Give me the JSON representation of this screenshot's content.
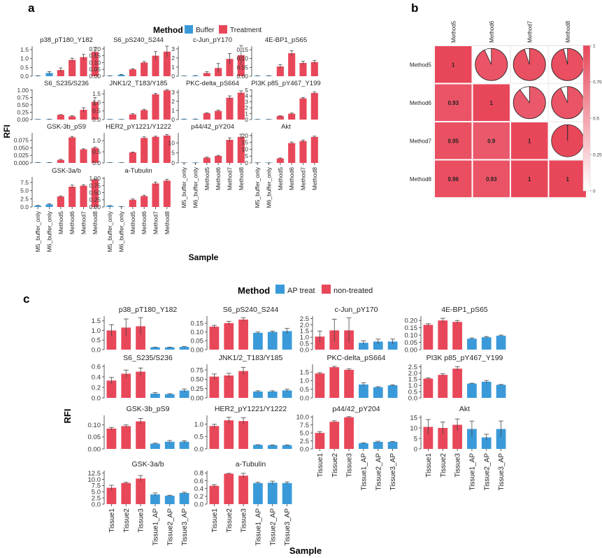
{
  "colors": {
    "red": "#E8475A",
    "blue": "#3A9AD9",
    "axis": "#333333",
    "heat_low": "#FFFFFF",
    "heat_high": "#E8475A"
  },
  "panel_a": {
    "letter": "a",
    "legend": {
      "title": "Method",
      "items": [
        "Buffer",
        "Treatment"
      ]
    },
    "ylabel": "RFI",
    "xlabel": "Sample",
    "samples": [
      "M5_buffer_only",
      "M6_buffer_only",
      "Method5",
      "Method6",
      "Method7",
      "Method8"
    ],
    "sample_colors": [
      "blue",
      "blue",
      "red",
      "red",
      "red",
      "red"
    ],
    "subplots": [
      {
        "title": "p38_pT180_Y182",
        "ticks": [
          "0.0",
          "0.5",
          "1.0",
          "1.5"
        ],
        "ymax": 1.7,
        "values": [
          0.02,
          0.18,
          0.35,
          0.92,
          1.08,
          1.38
        ],
        "errors": [
          0.01,
          0.08,
          0.12,
          0.1,
          0.15,
          0.25
        ]
      },
      {
        "title": "S6_pS240_S244",
        "ticks": [
          "0.00",
          "0.05",
          "0.10",
          "0.15",
          "0.20"
        ],
        "ymax": 0.22,
        "values": [
          0.003,
          0.01,
          0.05,
          0.1,
          0.15,
          0.18
        ],
        "errors": [
          0.001,
          0.003,
          0.005,
          0.008,
          0.03,
          0.04
        ]
      },
      {
        "title": "c-Jun_pY170",
        "ticks": [
          "0",
          "1",
          "2",
          "3"
        ],
        "ymax": 3.3,
        "values": [
          0.02,
          0.05,
          0.35,
          0.9,
          1.9,
          2.3
        ],
        "errors": [
          0.01,
          0.02,
          0.15,
          0.5,
          0.6,
          1.1
        ]
      },
      {
        "title": "4E-BP1_pS65",
        "ticks": [
          "0.00",
          "0.05",
          "0.10",
          "0.15"
        ],
        "ymax": 0.17,
        "values": [
          0.002,
          0.002,
          0.055,
          0.13,
          0.075,
          0.08
        ],
        "errors": [
          0.001,
          0.001,
          0.01,
          0.015,
          0.01,
          0.01
        ]
      },
      {
        "title": "S6_S235/S236",
        "ticks": [
          "0.00",
          "0.25",
          "0.50",
          "0.75",
          "1.00"
        ],
        "ymax": 1.02,
        "values": [
          0.005,
          0.01,
          0.16,
          0.11,
          0.33,
          0.6
        ],
        "errors": [
          0.002,
          0.005,
          0.01,
          0.02,
          0.07,
          0.15
        ]
      },
      {
        "title": "JNK1/2_T183/Y185",
        "ticks": [
          "0.0",
          "0.5",
          "1.0",
          "1.5"
        ],
        "ymax": 1.75,
        "values": [
          0.01,
          0.01,
          0.3,
          0.55,
          1.47,
          1.7
        ],
        "errors": [
          0.003,
          0.003,
          0.04,
          0.05,
          0.06,
          0.05
        ]
      },
      {
        "title": "PKC-delta_pS664",
        "ticks": [
          "0",
          "1",
          "2",
          "3"
        ],
        "ymax": 3.3,
        "values": [
          0.05,
          0.05,
          0.7,
          0.95,
          2.4,
          2.95
        ],
        "errors": [
          0.01,
          0.01,
          0.05,
          0.08,
          0.2,
          0.2
        ]
      },
      {
        "title": "PI3K p85_pY467_Y199",
        "ticks": [
          "0",
          "1",
          "2",
          "3",
          "4",
          "5"
        ],
        "ymax": 5.1,
        "values": [
          0.02,
          0.02,
          0.6,
          1.0,
          3.6,
          4.5
        ],
        "errors": [
          0.01,
          0.01,
          0.05,
          0.1,
          0.15,
          0.2
        ]
      },
      {
        "title": "GSK-3b_pS9",
        "ticks": [
          "0.000",
          "0.025",
          "0.050",
          "0.075"
        ],
        "ymax": 0.1,
        "values": [
          0.001,
          0.001,
          0.01,
          0.085,
          0.045,
          0.05
        ],
        "errors": [
          0.0005,
          0.0005,
          0.002,
          0.003,
          0.002,
          0.003
        ]
      },
      {
        "title": "HER2_pY1221/Y1222",
        "ticks": [
          "0.0",
          "0.5",
          "1.0"
        ],
        "ymax": 1.35,
        "values": [
          0.01,
          0.01,
          0.47,
          1.12,
          1.17,
          1.23
        ],
        "errors": [
          0.003,
          0.003,
          0.02,
          0.05,
          0.03,
          0.05
        ]
      },
      {
        "title": "p44/42_pY204",
        "ticks": [
          "0",
          "5",
          "10"
        ],
        "ymax": 15.0,
        "values": [
          0.02,
          0.02,
          2.6,
          3.5,
          11.5,
          13.0
        ],
        "errors": [
          0.01,
          0.01,
          0.3,
          0.3,
          1.0,
          1.3
        ]
      },
      {
        "title": "Akt",
        "ticks": [
          "0",
          "5",
          "10",
          "15",
          "20"
        ],
        "ymax": 22.0,
        "values": [
          0.05,
          0.05,
          3.3,
          14.5,
          16.0,
          19.0
        ],
        "errors": [
          0.02,
          0.02,
          0.3,
          0.8,
          0.8,
          0.6
        ]
      },
      {
        "title": "GSK-3a/b",
        "ticks": [
          "0.0",
          "2.5",
          "5.0",
          "7.5"
        ],
        "ymax": 9.2,
        "values": [
          0.4,
          0.8,
          3.2,
          6.2,
          6.5,
          8.4
        ],
        "errors": [
          0.1,
          0.15,
          0.2,
          0.5,
          0.3,
          0.2
        ]
      },
      {
        "title": "a-Tubulin",
        "ticks": [
          "0.00",
          "0.25",
          "0.50",
          "0.75",
          "1.00"
        ],
        "ymax": 1.05,
        "values": [
          0.04,
          0.01,
          0.25,
          0.38,
          0.82,
          0.92
        ],
        "errors": [
          0.01,
          0.005,
          0.03,
          0.03,
          0.05,
          0.05
        ]
      }
    ]
  },
  "panel_b": {
    "letter": "b",
    "labels": [
      "Method5",
      "Method6",
      "Method7",
      "Method8"
    ],
    "matrix": [
      [
        1,
        0.93,
        0.95,
        0.96
      ],
      [
        0.93,
        1,
        0.9,
        0.93
      ],
      [
        0.95,
        0.9,
        1,
        1
      ],
      [
        0.96,
        0.93,
        1,
        1
      ]
    ],
    "lower_text": [
      [
        "1",
        "",
        "",
        ""
      ],
      [
        "0.93",
        "1",
        "",
        ""
      ],
      [
        "0.95",
        "0.9",
        "1",
        ""
      ],
      [
        "0.96",
        "0.93",
        "1",
        "1"
      ]
    ],
    "colorbar_ticks": [
      "0",
      "0.25",
      "0.5",
      "0.75",
      "1"
    ]
  },
  "panel_c": {
    "letter": "c",
    "legend": {
      "title": "Method",
      "items": [
        "AP treat",
        "non-treated"
      ]
    },
    "ylabel": "RFI",
    "xlabel": "Sample",
    "samples": [
      "Tissue1",
      "Tissue2",
      "Tissue3",
      "Tissue1_AP",
      "Tissue2_AP",
      "Tissue3_AP"
    ],
    "sample_colors": [
      "red",
      "red",
      "red",
      "blue",
      "blue",
      "blue"
    ],
    "subplots": [
      {
        "title": "p38_pT180_Y182",
        "ticks": [
          "0.0",
          "0.5",
          "1.0",
          "1.5"
        ],
        "ymax": 1.75,
        "values": [
          1.0,
          1.15,
          1.22,
          0.12,
          0.12,
          0.14
        ],
        "errors": [
          0.3,
          0.45,
          0.45,
          0.01,
          0.01,
          0.02
        ]
      },
      {
        "title": "S6_pS240_S244",
        "ticks": [
          "0.00",
          "0.05",
          "0.10",
          "0.15"
        ],
        "ymax": 0.19,
        "values": [
          0.13,
          0.15,
          0.17,
          0.095,
          0.1,
          0.105
        ],
        "errors": [
          0.008,
          0.01,
          0.01,
          0.005,
          0.005,
          0.015
        ]
      },
      {
        "title": "c-Jun_pY170",
        "ticks": [
          "0.0",
          "0.5",
          "1.0",
          "1.5",
          "2.0",
          "2.5"
        ],
        "ymax": 2.7,
        "values": [
          1.05,
          1.55,
          1.55,
          0.55,
          0.65,
          0.65
        ],
        "errors": [
          0.45,
          0.9,
          1.0,
          0.15,
          0.2,
          0.2
        ]
      },
      {
        "title": "4E-BP1_pS65",
        "ticks": [
          "0.00",
          "0.05",
          "0.10",
          "0.15",
          "0.20"
        ],
        "ymax": 0.23,
        "values": [
          0.17,
          0.2,
          0.19,
          0.075,
          0.085,
          0.095
        ],
        "errors": [
          0.008,
          0.015,
          0.01,
          0.005,
          0.005,
          0.005
        ]
      },
      {
        "title": "S6_S235/S236",
        "ticks": [
          "0.0",
          "0.2",
          "0.4",
          "0.6"
        ],
        "ymax": 0.64,
        "values": [
          0.33,
          0.46,
          0.5,
          0.08,
          0.07,
          0.14
        ],
        "errors": [
          0.06,
          0.07,
          0.07,
          0.02,
          0.01,
          0.03
        ]
      },
      {
        "title": "JNK1/2_T183/Y185",
        "ticks": [
          "0.00",
          "0.25",
          "0.50",
          "0.75"
        ],
        "ymax": 0.9,
        "values": [
          0.57,
          0.6,
          0.72,
          0.17,
          0.17,
          0.2
        ],
        "errors": [
          0.07,
          0.06,
          0.1,
          0.02,
          0.02,
          0.03
        ]
      },
      {
        "title": "PKC-delta_pS664",
        "ticks": [
          "0.0",
          "0.5",
          "1.0",
          "1.5"
        ],
        "ymax": 1.95,
        "values": [
          1.42,
          1.78,
          1.63,
          0.78,
          0.62,
          0.73
        ],
        "errors": [
          0.05,
          0.05,
          0.05,
          0.1,
          0.03,
          0.03
        ]
      },
      {
        "title": "PI3K p85_pY467_Y199",
        "ticks": [
          "0.0",
          "0.5",
          "1.0",
          "1.5",
          "2.0",
          "2.5"
        ],
        "ymax": 2.7,
        "values": [
          1.55,
          1.85,
          2.35,
          1.15,
          1.3,
          1.05
        ],
        "errors": [
          0.06,
          0.1,
          0.15,
          0.03,
          0.1,
          0.03
        ]
      },
      {
        "title": "GSK-3b_pS9",
        "ticks": [
          "0.00",
          "0.05",
          "0.10"
        ],
        "ymax": 0.14,
        "values": [
          0.085,
          0.095,
          0.115,
          0.022,
          0.03,
          0.03
        ],
        "errors": [
          0.005,
          0.005,
          0.012,
          0.002,
          0.005,
          0.004
        ]
      },
      {
        "title": "HER2_pY1221/Y1222",
        "ticks": [
          "0.0",
          "0.5",
          "1.0"
        ],
        "ymax": 1.35,
        "values": [
          0.92,
          1.15,
          1.12,
          0.16,
          0.15,
          0.15
        ],
        "errors": [
          0.07,
          0.12,
          0.13,
          0.01,
          0.01,
          0.01
        ]
      },
      {
        "title": "p44/42_pY204",
        "ticks": [
          "0.0",
          "2.5",
          "5.0",
          "7.5",
          "10.0"
        ],
        "ymax": 10.5,
        "values": [
          5.0,
          8.5,
          9.9,
          1.8,
          2.2,
          2.2
        ],
        "errors": [
          0.4,
          0.3,
          0.2,
          0.1,
          0.2,
          0.1
        ]
      },
      {
        "title": "Akt",
        "ticks": [
          "0",
          "5",
          "10",
          "15"
        ],
        "ymax": 16.0,
        "values": [
          10.5,
          10.0,
          11.5,
          9.5,
          5.5,
          9.5
        ],
        "errors": [
          3.5,
          2.8,
          2.8,
          3.8,
          1.5,
          3.8
        ]
      },
      {
        "title": "GSK-3a/b",
        "ticks": [
          "0.0",
          "2.5",
          "5.0",
          "7.5",
          "10.0",
          "12.5"
        ],
        "ymax": 13.5,
        "values": [
          6.6,
          8.5,
          10.3,
          3.9,
          3.4,
          4.5
        ],
        "errors": [
          1.0,
          0.3,
          1.2,
          0.6,
          0.2,
          0.3
        ]
      },
      {
        "title": "a-Tubulin",
        "ticks": [
          "0.0",
          "0.2",
          "0.4",
          "0.6",
          "0.8"
        ],
        "ymax": 0.86,
        "values": [
          0.47,
          0.78,
          0.73,
          0.54,
          0.55,
          0.54
        ],
        "errors": [
          0.03,
          0.01,
          0.06,
          0.02,
          0.04,
          0.03
        ]
      }
    ]
  }
}
